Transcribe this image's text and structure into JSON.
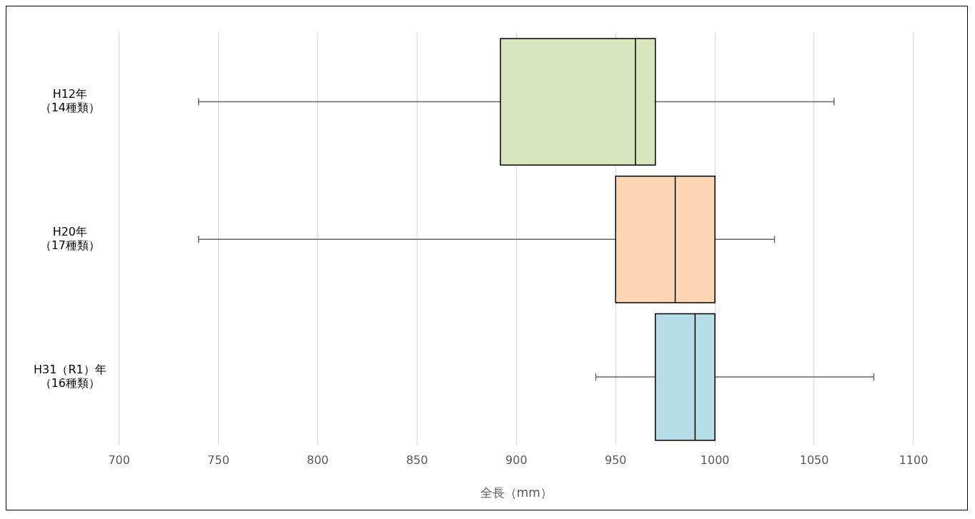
{
  "chart_data": {
    "type": "box",
    "orientation": "horizontal",
    "xlabel": "全長（mm）",
    "categories": [
      "H12年（14種類）",
      "H20年（17種類）",
      "H31（R1）年（16種類）"
    ],
    "boxes": [
      {
        "low": 740,
        "q1": 892,
        "median": 960,
        "q3": 970,
        "high": 1060
      },
      {
        "low": 740,
        "q1": 950,
        "median": 980,
        "q3": 1000,
        "high": 1030
      },
      {
        "low": 940,
        "q1": 970,
        "median": 990,
        "q3": 1000,
        "high": 1080
      }
    ],
    "colors": [
      "#d8e4bc",
      "#fcd5b5",
      "#b7dee8"
    ],
    "xlim": [
      700,
      1100
    ],
    "xticks": [
      700,
      750,
      800,
      850,
      900,
      950,
      1000,
      1050,
      1100
    ],
    "grid": "x"
  }
}
